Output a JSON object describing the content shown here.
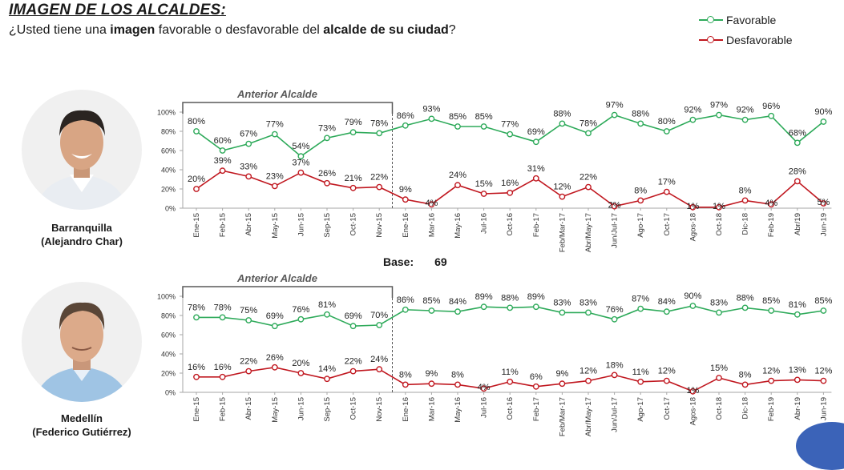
{
  "header": {
    "title": "IMAGEN DE LOS ALCALDES:",
    "subtitle_pre": "¿Usted tiene una ",
    "subtitle_bold1": "imagen",
    "subtitle_mid": " favorable o desfavorable del ",
    "subtitle_bold2": "alcalde de su ciudad",
    "subtitle_post": "?"
  },
  "legend": {
    "favorable": "Favorable",
    "desfavorable": "Desfavorable"
  },
  "colors": {
    "favorable": "#2eaa5a",
    "desfavorable": "#c0171f",
    "axis": "#a6a6a6",
    "bracket": "#595959"
  },
  "base": {
    "label": "Base:",
    "value": "69"
  },
  "chart_data": [
    {
      "type": "line",
      "title": "Barranquilla (Alejandro Char)",
      "city": "Barranquilla",
      "mayor": "(Alejandro Char)",
      "annotation": "Anterior Alcalde",
      "categories": [
        "Ene-15",
        "Feb-15",
        "Abr-15",
        "May-15",
        "Jun-15",
        "Sep-15",
        "Oct-15",
        "Nov-15",
        "Ene-16",
        "Mar-16",
        "May-16",
        "Jul-16",
        "Oct-16",
        "Feb-17",
        "Feb/Mar-17",
        "Abr/May-17",
        "Jun/Jul-17",
        "Ago-17",
        "Oct-17",
        "Agos-18",
        "Oct-18",
        "Dic-18",
        "Feb-19",
        "Abr/19",
        "Jun-19"
      ],
      "y_ticks": [
        "0%",
        "20%",
        "40%",
        "60%",
        "80%",
        "100%"
      ],
      "ylim": [
        0,
        100
      ],
      "series": [
        {
          "name": "Favorable",
          "values": [
            80,
            60,
            67,
            77,
            54,
            73,
            79,
            78,
            86,
            93,
            85,
            85,
            77,
            69,
            88,
            78,
            97,
            88,
            80,
            92,
            97,
            92,
            96,
            68,
            90
          ]
        },
        {
          "name": "Desfavorable",
          "values": [
            20,
            39,
            33,
            23,
            37,
            26,
            21,
            22,
            9,
            4,
            24,
            15,
            16,
            31,
            12,
            22,
            2,
            8,
            17,
            1,
            1,
            8,
            4,
            28,
            5
          ]
        }
      ]
    },
    {
      "type": "line",
      "title": "Medellín (Federico Gutiérrez)",
      "city": "Medellín",
      "mayor": "(Federico Gutiérrez)",
      "annotation": "Anterior Alcalde",
      "categories": [
        "Ene-15",
        "Feb-15",
        "Abr-15",
        "May-15",
        "Jun-15",
        "Sep-15",
        "Oct-15",
        "Nov-15",
        "Ene-16",
        "Mar-16",
        "May-16",
        "Jul-16",
        "Oct-16",
        "Feb-17",
        "Feb/Mar-17",
        "Abr/May-17",
        "Jun/Jul-17",
        "Ago-17",
        "Oct-17",
        "Agos-18",
        "Oct-18",
        "Dic-18",
        "Feb-19",
        "Abr-19",
        "Jun-19"
      ],
      "y_ticks": [
        "0%",
        "20%",
        "40%",
        "60%",
        "80%",
        "100%"
      ],
      "ylim": [
        0,
        100
      ],
      "series": [
        {
          "name": "Favorable",
          "values": [
            78,
            78,
            75,
            69,
            76,
            81,
            69,
            70,
            86,
            85,
            84,
            89,
            88,
            89,
            83,
            83,
            76,
            87,
            84,
            90,
            83,
            88,
            85,
            81,
            85
          ]
        },
        {
          "name": "Desfavorable",
          "values": [
            16,
            16,
            22,
            26,
            20,
            14,
            22,
            24,
            8,
            9,
            8,
            4,
            11,
            6,
            9,
            12,
            18,
            11,
            12,
            1,
            15,
            8,
            12,
            13,
            12
          ]
        }
      ]
    }
  ]
}
